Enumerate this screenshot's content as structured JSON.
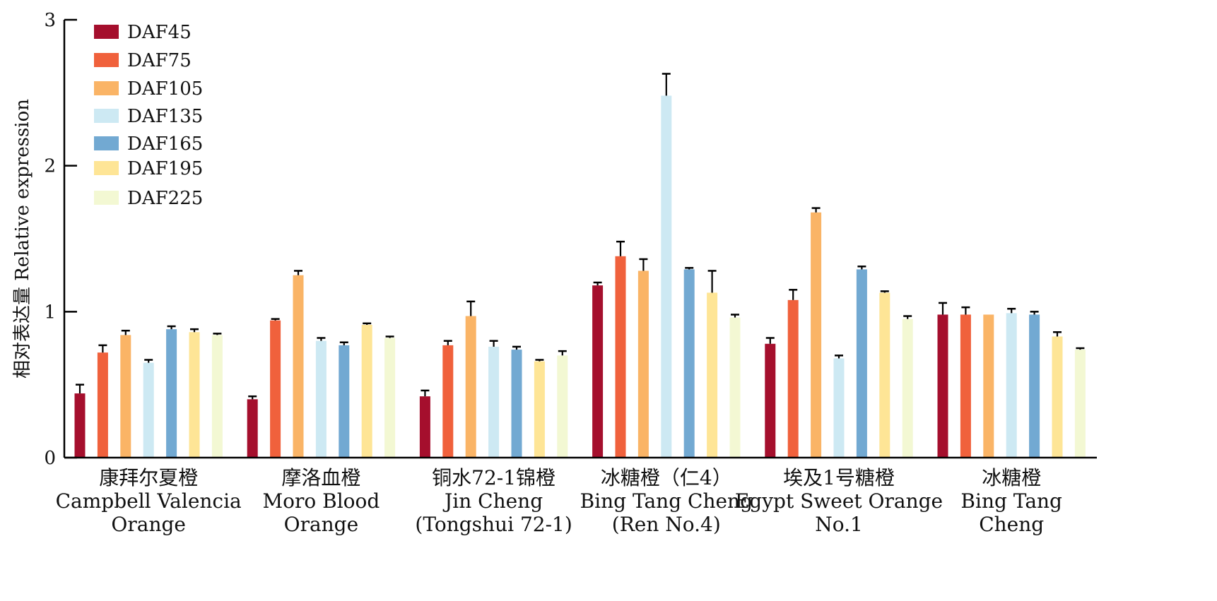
{
  "chart_data": {
    "type": "bar",
    "ylabel": "相对表达量 Relative expression",
    "ylim": [
      0,
      3
    ],
    "yticks": [
      0,
      1,
      2,
      3
    ],
    "legend_position": "top-left",
    "grid": false,
    "categories": [
      {
        "zh": "康拜尔夏橙",
        "en": [
          "Campbell Valencia",
          "Orange"
        ]
      },
      {
        "zh": "摩洛血橙",
        "en": [
          "Moro Blood",
          "Orange"
        ]
      },
      {
        "zh": "铜水72-1锦橙",
        "en": [
          "Jin Cheng",
          "(Tongshui 72-1)"
        ]
      },
      {
        "zh": "冰糖橙（仁4）",
        "en": [
          "Bing Tang Cheng",
          "(Ren No.4)"
        ]
      },
      {
        "zh": "埃及1号糖橙",
        "en": [
          "Egypt Sweet Orange",
          "No.1"
        ]
      },
      {
        "zh": "冰糖橙",
        "en": [
          "Bing Tang",
          "Cheng"
        ]
      }
    ],
    "series": [
      {
        "name": "DAF45",
        "color": "#a50f2d",
        "values": [
          0.44,
          0.4,
          0.42,
          1.18,
          0.78,
          0.98
        ],
        "errors": [
          0.06,
          0.02,
          0.04,
          0.02,
          0.04,
          0.08
        ]
      },
      {
        "name": "DAF75",
        "color": "#f0613c",
        "values": [
          0.72,
          0.94,
          0.77,
          1.38,
          1.08,
          0.98
        ],
        "errors": [
          0.05,
          0.01,
          0.03,
          0.1,
          0.07,
          0.05
        ]
      },
      {
        "name": "DAF105",
        "color": "#fab466",
        "values": [
          0.84,
          1.25,
          0.97,
          1.28,
          1.68,
          0.98
        ],
        "errors": [
          0.03,
          0.03,
          0.1,
          0.08,
          0.03,
          0.0
        ]
      },
      {
        "name": "DAF135",
        "color": "#cde9f3",
        "values": [
          0.65,
          0.8,
          0.76,
          2.48,
          0.68,
          0.99
        ],
        "errors": [
          0.02,
          0.02,
          0.04,
          0.15,
          0.02,
          0.03
        ]
      },
      {
        "name": "DAF165",
        "color": "#72a9d2",
        "values": [
          0.88,
          0.77,
          0.74,
          1.29,
          1.29,
          0.98
        ],
        "errors": [
          0.02,
          0.02,
          0.02,
          0.01,
          0.02,
          0.02
        ]
      },
      {
        "name": "DAF195",
        "color": "#fee596",
        "values": [
          0.86,
          0.91,
          0.66,
          1.13,
          1.13,
          0.83
        ],
        "errors": [
          0.02,
          0.01,
          0.01,
          0.15,
          0.01,
          0.03
        ]
      },
      {
        "name": "DAF225",
        "color": "#f3f8d3",
        "values": [
          0.84,
          0.82,
          0.7,
          0.96,
          0.95,
          0.74
        ],
        "errors": [
          0.01,
          0.01,
          0.03,
          0.02,
          0.02,
          0.01
        ]
      }
    ]
  }
}
